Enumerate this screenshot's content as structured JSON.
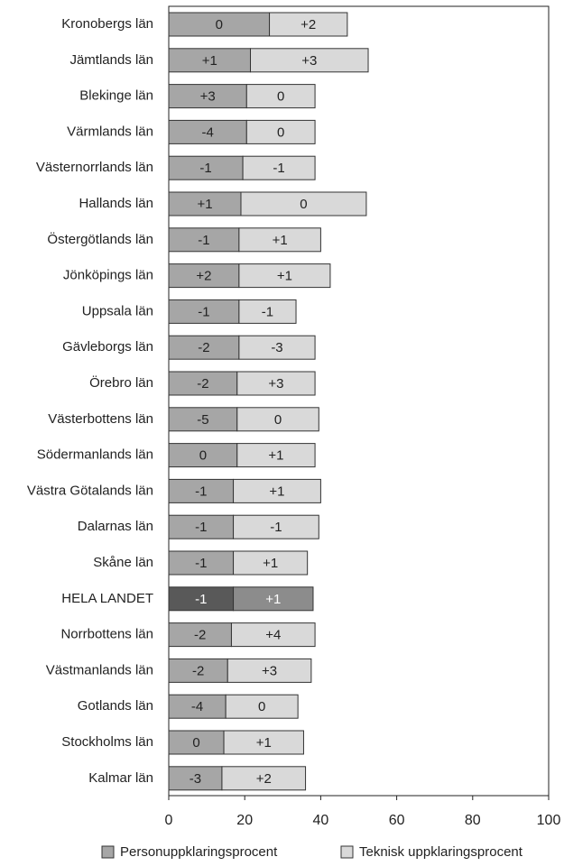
{
  "chart_data": {
    "type": "stacked_barh",
    "categories": [
      "Kronobergs län",
      "Jämtlands län",
      "Blekinge län",
      "Värmlands län",
      "Västernorrlands län",
      "Hallands län",
      "Östergötlands län",
      "Jönköpings län",
      "Uppsala län",
      "Gävleborgs län",
      "Örebro län",
      "Västerbottens län",
      "Södermanlands län",
      "Västra Götalands län",
      "Dalarnas län",
      "Skåne län",
      "HELA LANDET",
      "Norrbottens län",
      "Västmanlands län",
      "Gotlands län",
      "Stockholms län",
      "Kalmar län"
    ],
    "highlight_category": "HELA LANDET",
    "series": [
      {
        "name": "Personuppklaringsprocent",
        "color": "#a6a6a6",
        "highlight_color": "#595959",
        "values": [
          26.5,
          21.5,
          20.5,
          20.5,
          19.5,
          19,
          18.5,
          18.5,
          18.5,
          18.5,
          18,
          18,
          18,
          17,
          17,
          17,
          17,
          16.5,
          15.5,
          15,
          14.5,
          14
        ],
        "segment_labels": [
          "0",
          "+1",
          "+3",
          "-4",
          "-1",
          "+1",
          "-1",
          "+2",
          "-1",
          "-2",
          "-2",
          "-5",
          "0",
          "-1",
          "-1",
          "-1",
          "-1",
          "-2",
          "-2",
          "-4",
          "0",
          "-3"
        ]
      },
      {
        "name": "Teknisk uppklaringsprocent",
        "color": "#d9d9d9",
        "highlight_color": "#8c8c8c",
        "values": [
          20.5,
          31,
          18,
          18,
          19,
          33,
          21.5,
          24,
          15,
          20,
          20.5,
          21.5,
          20.5,
          23,
          22.5,
          19.5,
          21,
          22,
          22,
          19,
          21,
          22
        ],
        "segment_labels": [
          "+2",
          "+3",
          "0",
          "0",
          "-1",
          "0",
          "+1",
          "+1",
          "-1",
          "-3",
          "+3",
          "0",
          "+1",
          "+1",
          "-1",
          "+1",
          "+1",
          "+4",
          "+3",
          "0",
          "+1",
          "+2"
        ]
      }
    ],
    "xlim": [
      0,
      100
    ],
    "xticks": [
      0,
      20,
      40,
      60,
      80,
      100
    ],
    "legend": "bottom"
  }
}
